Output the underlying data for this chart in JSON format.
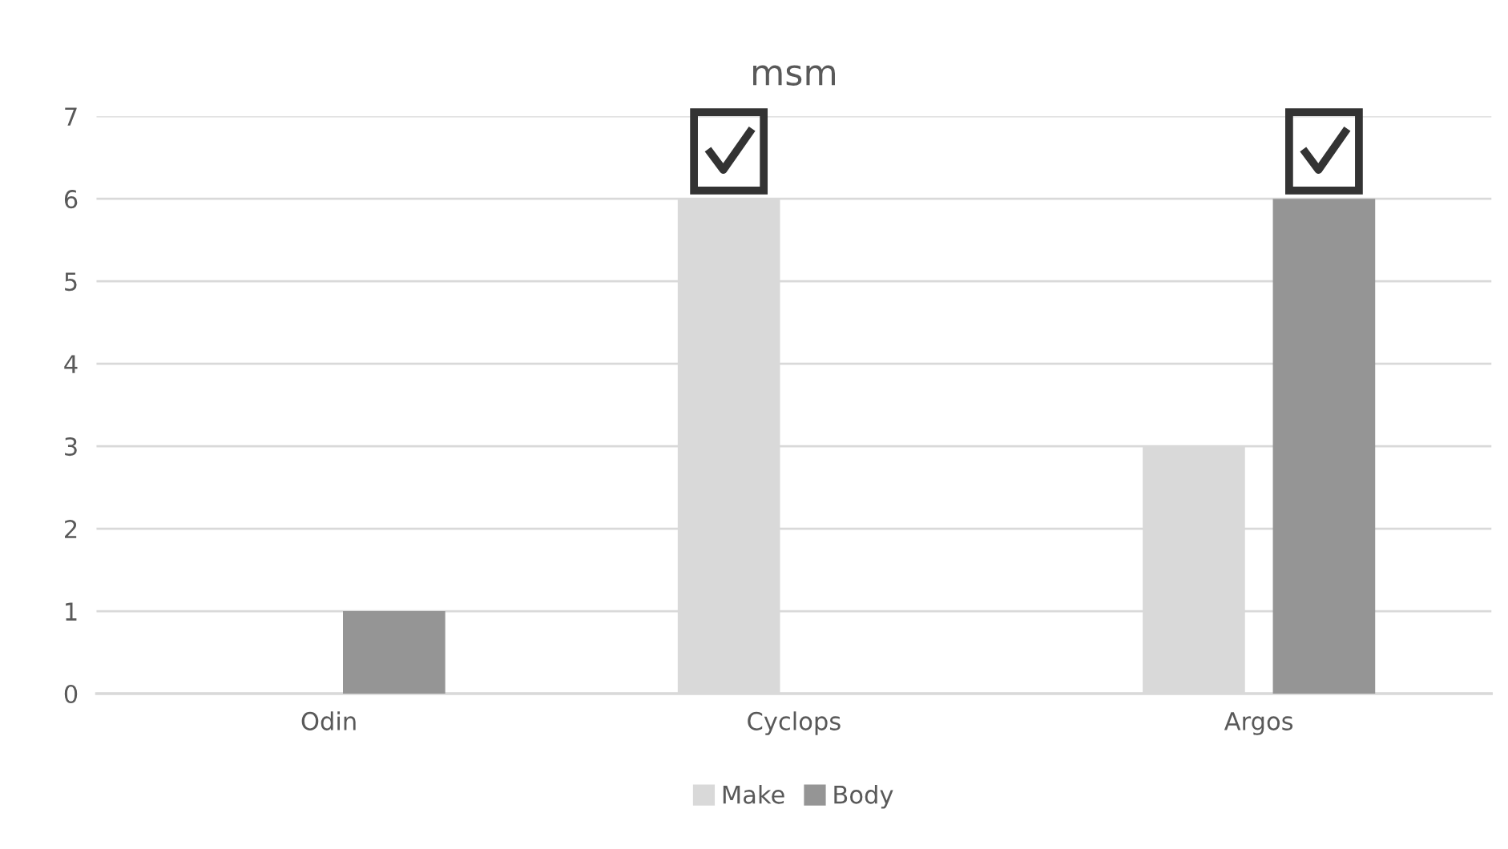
{
  "chart_data": {
    "type": "bar",
    "title": "msm",
    "categories": [
      "Odin",
      "Cyclops",
      "Argos"
    ],
    "series": [
      {
        "name": "Make",
        "color": "#d9d9d9",
        "values": [
          0,
          6,
          3
        ]
      },
      {
        "name": "Body",
        "color": "#959595",
        "values": [
          1,
          0,
          6
        ]
      }
    ],
    "ylim": [
      0,
      7
    ],
    "yticks": [
      0,
      1,
      2,
      3,
      4,
      5,
      6,
      7
    ],
    "grid": "y",
    "legend": "bottom"
  }
}
